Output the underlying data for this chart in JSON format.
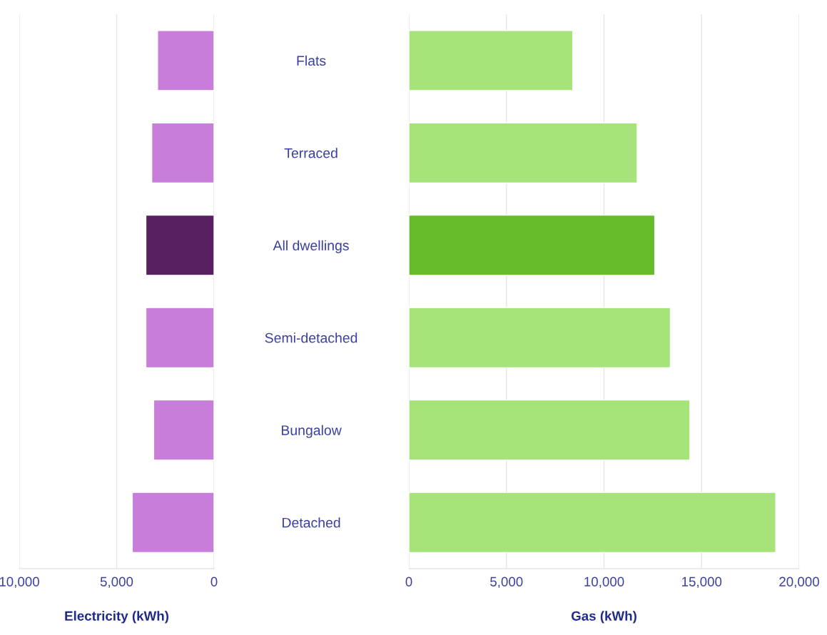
{
  "chart_data": [
    {
      "type": "bar",
      "orientation": "horizontal",
      "categories": [
        null,
        null,
        null,
        null,
        null,
        null
      ],
      "values": [
        2900,
        3200,
        3500,
        3500,
        3100,
        4200
      ],
      "colors": [
        "#c77dd9",
        "#c77dd9",
        "#5a1e62",
        "#c77dd9",
        "#c77dd9",
        "#c77dd9"
      ],
      "xlim": [
        10000,
        0
      ],
      "xticks": [
        {
          "value": 10000,
          "label": "10,000"
        },
        {
          "value": 5000,
          "label": "5,000"
        },
        0
      ],
      "xlabel": "Electricity (kWh)",
      "grid": "x"
    },
    {
      "type": "bar",
      "orientation": "horizontal",
      "categories": [
        "Flats",
        "Terraced",
        "All dwellings",
        "Semi-detached",
        "Bungalow",
        "Detached"
      ],
      "values": [
        8400,
        11700,
        12600,
        13400,
        14400,
        18800
      ],
      "colors": [
        "#a6e37a",
        "#a6e37a",
        "#66bb28",
        "#a6e37a",
        "#a6e37a",
        "#a6e37a"
      ],
      "xlim": [
        0,
        20000
      ],
      "xticks": [
        0,
        {
          "value": 5000,
          "label": "5,000"
        },
        {
          "value": 10000,
          "label": "10,000"
        },
        {
          "value": 15000,
          "label": "15,000"
        },
        {
          "value": 20000,
          "label": "20,000"
        }
      ],
      "xlabel": "Gas (kWh)",
      "grid": "x"
    }
  ]
}
